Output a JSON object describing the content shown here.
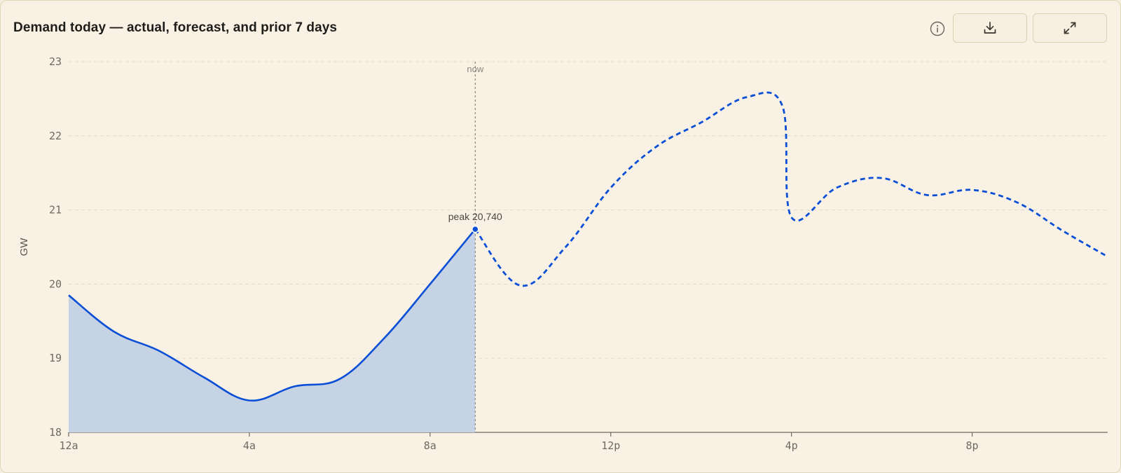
{
  "header": {
    "title": "Demand today — actual, forecast, and prior 7 days",
    "info_icon": "info-icon",
    "download_icon": "download-icon",
    "expand_icon": "expand-icon"
  },
  "colors": {
    "background": "#f9f2e4",
    "accent": "#0b4fd6",
    "area_fill": "#c5d3e4",
    "grid": "#e3dbc9"
  },
  "chart_data": {
    "type": "line",
    "ylabel": "GW",
    "xlabel": "",
    "ylim": [
      18,
      23
    ],
    "xlim_hours": [
      0,
      23
    ],
    "y_ticks": [
      "18",
      "19",
      "20",
      "21",
      "22",
      "23"
    ],
    "x_ticks": [
      {
        "hour": 0,
        "label": "12a"
      },
      {
        "hour": 4,
        "label": "4a"
      },
      {
        "hour": 8,
        "label": "8a"
      },
      {
        "hour": 12,
        "label": "12p"
      },
      {
        "hour": 16,
        "label": "4p"
      },
      {
        "hour": 20,
        "label": "8p"
      }
    ],
    "grid": true,
    "now_hour": 9,
    "now_label": "now",
    "peak_label": "peak 20,740",
    "peak": {
      "hour": 9,
      "value": 20.74
    },
    "series": [
      {
        "style": "actual",
        "x": [
          0,
          1,
          2,
          3,
          4,
          5,
          6,
          7,
          8,
          9
        ],
        "values": [
          19.85,
          19.36,
          19.1,
          18.74,
          18.43,
          18.62,
          18.72,
          19.28,
          20.0,
          20.74
        ]
      },
      {
        "style": "forecast",
        "x": [
          9,
          10,
          11,
          12,
          13,
          14,
          15,
          15.8,
          16,
          17,
          18,
          19,
          20,
          21,
          22,
          23
        ],
        "values": [
          20.74,
          19.98,
          20.5,
          21.3,
          21.85,
          22.18,
          22.52,
          22.4,
          20.9,
          21.3,
          21.43,
          21.2,
          21.27,
          21.1,
          20.72,
          20.37
        ]
      }
    ]
  }
}
